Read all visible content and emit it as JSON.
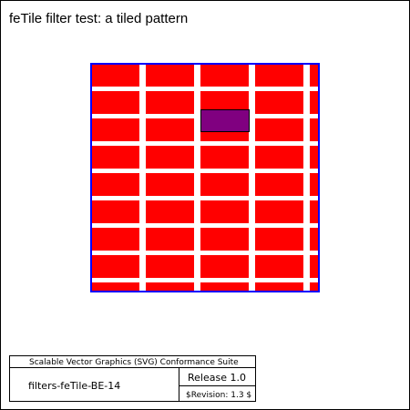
{
  "test": {
    "title": "feTile filter test: a tiled pattern"
  },
  "tile_pattern": {
    "columns": 5,
    "rows": 9,
    "tile_color": "#ff0000",
    "gap_color": "#ffffff",
    "border_color": "#0000ff",
    "highlight_tile_color": "#800080",
    "highlight_tile_border": "#000000",
    "highlight_column": 3,
    "highlight_row": 2
  },
  "footer": {
    "suite_name": "Scalable Vector Graphics (SVG) Conformance Suite",
    "test_name": "filters-feTile-BE-14",
    "release": "Release 1.0",
    "revision": "$Revision: 1.3 $"
  }
}
